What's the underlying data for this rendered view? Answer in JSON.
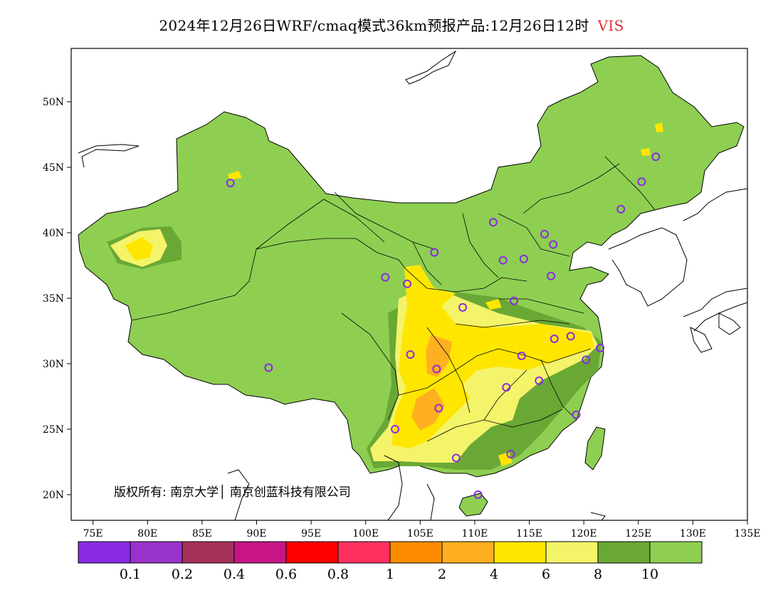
{
  "title": {
    "main": "2024年12月26日WRF/cmaq模式36km预报产品:12月26日12时",
    "variable": "VIS"
  },
  "map": {
    "lon_ticks": [
      "75E",
      "80E",
      "85E",
      "90E",
      "95E",
      "100E",
      "105E",
      "110E",
      "115E",
      "120E",
      "125E",
      "130E",
      "135E"
    ],
    "lat_ticks": [
      "50N",
      "45N",
      "40N",
      "35N",
      "30N",
      "25N",
      "20N"
    ],
    "copyright": "版权所有: 南京大学│ 南京创蓝科技有限公司",
    "background_color": "#8ecf52",
    "stations": [
      {
        "lon": 87.6,
        "lat": 43.8
      },
      {
        "lon": 91.1,
        "lat": 29.7
      },
      {
        "lon": 101.8,
        "lat": 36.6
      },
      {
        "lon": 103.8,
        "lat": 36.1
      },
      {
        "lon": 106.3,
        "lat": 38.5
      },
      {
        "lon": 111.7,
        "lat": 40.8
      },
      {
        "lon": 112.6,
        "lat": 37.9
      },
      {
        "lon": 114.5,
        "lat": 38.0
      },
      {
        "lon": 116.4,
        "lat": 39.9
      },
      {
        "lon": 117.2,
        "lat": 39.1
      },
      {
        "lon": 117.0,
        "lat": 36.7
      },
      {
        "lon": 113.6,
        "lat": 34.8
      },
      {
        "lon": 108.9,
        "lat": 34.3
      },
      {
        "lon": 104.1,
        "lat": 30.7
      },
      {
        "lon": 106.5,
        "lat": 29.6
      },
      {
        "lon": 106.7,
        "lat": 26.6
      },
      {
        "lon": 102.7,
        "lat": 25.0
      },
      {
        "lon": 108.3,
        "lat": 22.8
      },
      {
        "lon": 113.3,
        "lat": 23.1
      },
      {
        "lon": 110.3,
        "lat": 20.0
      },
      {
        "lon": 112.9,
        "lat": 28.2
      },
      {
        "lon": 115.9,
        "lat": 28.7
      },
      {
        "lon": 114.3,
        "lat": 30.6
      },
      {
        "lon": 117.3,
        "lat": 31.9
      },
      {
        "lon": 118.8,
        "lat": 32.1
      },
      {
        "lon": 120.2,
        "lat": 30.3
      },
      {
        "lon": 121.5,
        "lat": 31.2
      },
      {
        "lon": 119.3,
        "lat": 26.1
      },
      {
        "lon": 123.4,
        "lat": 41.8
      },
      {
        "lon": 125.3,
        "lat": 43.9
      },
      {
        "lon": 126.6,
        "lat": 45.8
      }
    ]
  },
  "colorbar": {
    "colors": [
      "#8a2be2",
      "#9932cc",
      "#a5305a",
      "#c71585",
      "#ff0000",
      "#ff3060",
      "#ff8c00",
      "#ffb020",
      "#ffe600",
      "#f4f46a",
      "#6aa835",
      "#8ecf52"
    ],
    "labels": [
      "0.1",
      "0.2",
      "0.4",
      "0.6",
      "0.8",
      "1",
      "2",
      "4",
      "6",
      "8",
      "10"
    ]
  }
}
